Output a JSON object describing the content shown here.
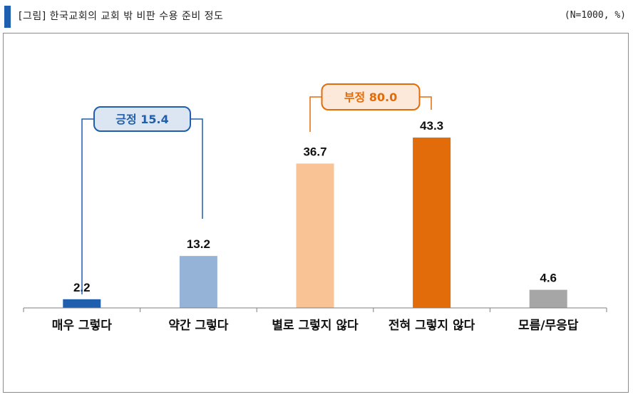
{
  "header": {
    "title": "[그림] 한국교회의 교회 밖 비판 수용 준비 정도",
    "sample_note": "(N=1000, %)"
  },
  "chart_data": {
    "type": "bar",
    "categories": [
      "매우 그렇다",
      "약간 그렇다",
      "별로 그렇지 않다",
      "전혀 그렇지 않다",
      "모름/무응답"
    ],
    "values": [
      2.2,
      13.2,
      36.7,
      43.3,
      4.6
    ],
    "value_labels": [
      "2.2",
      "13.2",
      "36.7",
      "43.3",
      "4.6"
    ],
    "colors": [
      "#1f5fad",
      "#95b3d7",
      "#f9c396",
      "#e36c0a",
      "#a6a6a6"
    ],
    "ylim": [
      0,
      45
    ],
    "grid": false,
    "legend": "none",
    "groups": [
      {
        "label": "긍정 15.4",
        "from": 0,
        "to": 1,
        "color": "#1f5fad",
        "fill": "#dce6f2"
      },
      {
        "label": "부정 80.0",
        "from": 2,
        "to": 3,
        "color": "#e36c0a",
        "fill": "#fde9d9"
      }
    ]
  }
}
